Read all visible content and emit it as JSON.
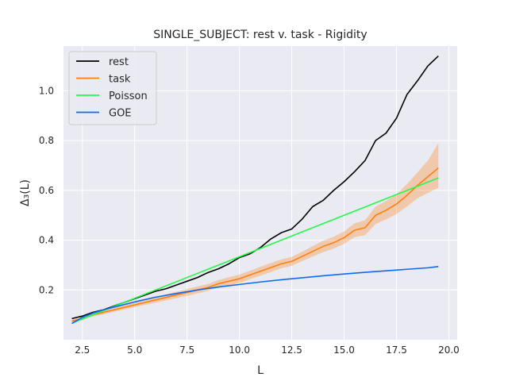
{
  "chart_data": {
    "type": "line",
    "title": "SINGLE_SUBJECT: rest v. task - Rigidity",
    "xlabel": "L",
    "ylabel": "Δ₃(L)",
    "xlim": [
      1.6,
      20.4
    ],
    "ylim": [
      0.0,
      1.18
    ],
    "xticks": [
      2.5,
      5.0,
      7.5,
      10.0,
      12.5,
      15.0,
      17.5,
      20.0
    ],
    "xtick_labels": [
      "2.5",
      "5.0",
      "7.5",
      "10.0",
      "12.5",
      "15.0",
      "17.5",
      "20.0"
    ],
    "yticks": [
      0.2,
      0.4,
      0.6,
      0.8,
      1.0
    ],
    "ytick_labels": [
      "0.2",
      "0.4",
      "0.6",
      "0.8",
      "1.0"
    ],
    "grid": true,
    "background": "#eaeaf2",
    "legend_position": "top-left",
    "series": [
      {
        "name": "rest",
        "color": "#000000",
        "x": [
          2.0,
          2.5,
          3.0,
          3.5,
          4.0,
          4.5,
          5.0,
          5.5,
          6.0,
          6.5,
          7.0,
          7.5,
          8.0,
          8.5,
          9.0,
          9.5,
          10.0,
          10.5,
          11.0,
          11.5,
          12.0,
          12.5,
          13.0,
          13.5,
          14.0,
          14.5,
          15.0,
          15.5,
          16.0,
          16.5,
          17.0,
          17.5,
          18.0,
          18.5,
          19.0,
          19.5
        ],
        "y": [
          0.085,
          0.095,
          0.11,
          0.12,
          0.135,
          0.15,
          0.165,
          0.18,
          0.195,
          0.205,
          0.22,
          0.235,
          0.25,
          0.27,
          0.285,
          0.305,
          0.33,
          0.345,
          0.37,
          0.405,
          0.43,
          0.445,
          0.485,
          0.535,
          0.56,
          0.6,
          0.635,
          0.675,
          0.72,
          0.8,
          0.83,
          0.89,
          0.985,
          1.04,
          1.1,
          1.14
        ]
      },
      {
        "name": "task",
        "color": "#ff7f0e",
        "x": [
          2.0,
          2.5,
          3.0,
          3.5,
          4.0,
          4.5,
          5.0,
          5.5,
          6.0,
          6.5,
          7.0,
          7.5,
          8.0,
          8.5,
          9.0,
          9.5,
          10.0,
          10.5,
          11.0,
          11.5,
          12.0,
          12.5,
          13.0,
          13.5,
          14.0,
          14.5,
          15.0,
          15.5,
          16.0,
          16.5,
          17.0,
          17.5,
          18.0,
          18.5,
          19.0,
          19.5
        ],
        "y": [
          0.075,
          0.085,
          0.1,
          0.11,
          0.12,
          0.13,
          0.14,
          0.15,
          0.16,
          0.17,
          0.18,
          0.19,
          0.2,
          0.21,
          0.225,
          0.235,
          0.245,
          0.26,
          0.275,
          0.29,
          0.305,
          0.315,
          0.335,
          0.355,
          0.375,
          0.39,
          0.41,
          0.44,
          0.45,
          0.5,
          0.52,
          0.545,
          0.58,
          0.62,
          0.655,
          0.69
        ],
        "band_lower": [
          0.07,
          0.08,
          0.093,
          0.102,
          0.112,
          0.121,
          0.131,
          0.14,
          0.149,
          0.158,
          0.167,
          0.176,
          0.186,
          0.196,
          0.21,
          0.219,
          0.228,
          0.243,
          0.257,
          0.272,
          0.287,
          0.297,
          0.316,
          0.334,
          0.352,
          0.366,
          0.385,
          0.412,
          0.42,
          0.465,
          0.483,
          0.505,
          0.535,
          0.568,
          0.59,
          0.61
        ],
        "band_upper": [
          0.08,
          0.09,
          0.107,
          0.118,
          0.128,
          0.139,
          0.149,
          0.16,
          0.171,
          0.182,
          0.193,
          0.204,
          0.214,
          0.224,
          0.24,
          0.251,
          0.262,
          0.277,
          0.293,
          0.308,
          0.323,
          0.333,
          0.354,
          0.376,
          0.398,
          0.414,
          0.435,
          0.468,
          0.48,
          0.535,
          0.557,
          0.585,
          0.625,
          0.672,
          0.72,
          0.79
        ]
      },
      {
        "name": "Poisson",
        "color": "#23f94a",
        "x": [
          2.0,
          19.5
        ],
        "y": [
          0.0667,
          0.65
        ]
      },
      {
        "name": "GOE",
        "color": "#0d6bf0",
        "x": [
          2.0,
          2.5,
          3.0,
          3.5,
          4.0,
          5.0,
          6.0,
          7.0,
          8.0,
          9.0,
          10.0,
          11.0,
          12.0,
          13.0,
          14.0,
          15.0,
          16.0,
          17.0,
          18.0,
          19.0,
          19.5
        ],
        "y": [
          0.065,
          0.09,
          0.107,
          0.12,
          0.131,
          0.152,
          0.171,
          0.186,
          0.2,
          0.212,
          0.222,
          0.232,
          0.241,
          0.249,
          0.257,
          0.264,
          0.271,
          0.277,
          0.283,
          0.289,
          0.294
        ]
      }
    ]
  }
}
